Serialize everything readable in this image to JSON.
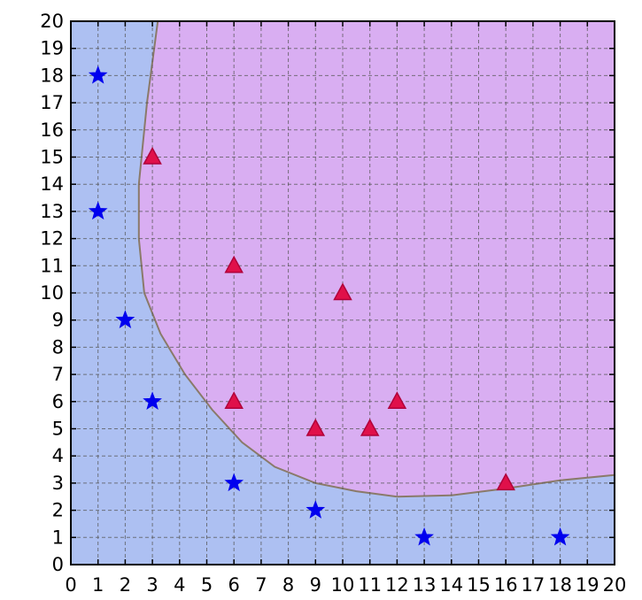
{
  "chart_data": {
    "type": "scatter",
    "title": "",
    "xlabel": "",
    "ylabel": "",
    "xlim": [
      0,
      20
    ],
    "ylim": [
      0,
      20
    ],
    "grid": true,
    "x_ticks": [
      "0",
      "1",
      "2",
      "3",
      "4",
      "5",
      "6",
      "7",
      "8",
      "9",
      "10",
      "11",
      "12",
      "13",
      "14",
      "15",
      "16",
      "17",
      "18",
      "19",
      "20"
    ],
    "y_ticks": [
      "0",
      "1",
      "2",
      "3",
      "4",
      "5",
      "6",
      "7",
      "8",
      "9",
      "10",
      "11",
      "12",
      "13",
      "14",
      "15",
      "16",
      "17",
      "18",
      "19",
      "20"
    ],
    "series": [
      {
        "marker": "star",
        "color": "#0000ee",
        "points": [
          [
            1,
            18
          ],
          [
            1,
            13
          ],
          [
            2,
            9
          ],
          [
            3,
            6
          ],
          [
            6,
            3
          ],
          [
            9,
            2
          ],
          [
            13,
            1
          ],
          [
            18,
            1
          ]
        ]
      },
      {
        "marker": "triangle",
        "color": "#e0104a",
        "points": [
          [
            3,
            15
          ],
          [
            6,
            11
          ],
          [
            10,
            10
          ],
          [
            6,
            6
          ],
          [
            12,
            6
          ],
          [
            9,
            5
          ],
          [
            11,
            5
          ],
          [
            16,
            3
          ]
        ]
      }
    ],
    "regions": {
      "outer_color": "#adc0f2",
      "inner_color": "#d9aef2",
      "boundary_color": "#8a7a6a",
      "boundary": [
        [
          3.2,
          20
        ],
        [
          2.8,
          17
        ],
        [
          2.5,
          14
        ],
        [
          2.5,
          12
        ],
        [
          2.7,
          10
        ],
        [
          3.3,
          8.5
        ],
        [
          4.2,
          7
        ],
        [
          5.2,
          5.7
        ],
        [
          6.3,
          4.5
        ],
        [
          7.5,
          3.6
        ],
        [
          9,
          3
        ],
        [
          10.5,
          2.7
        ],
        [
          12,
          2.5
        ],
        [
          14,
          2.55
        ],
        [
          16,
          2.8
        ],
        [
          18,
          3.1
        ],
        [
          20,
          3.3
        ]
      ]
    }
  }
}
